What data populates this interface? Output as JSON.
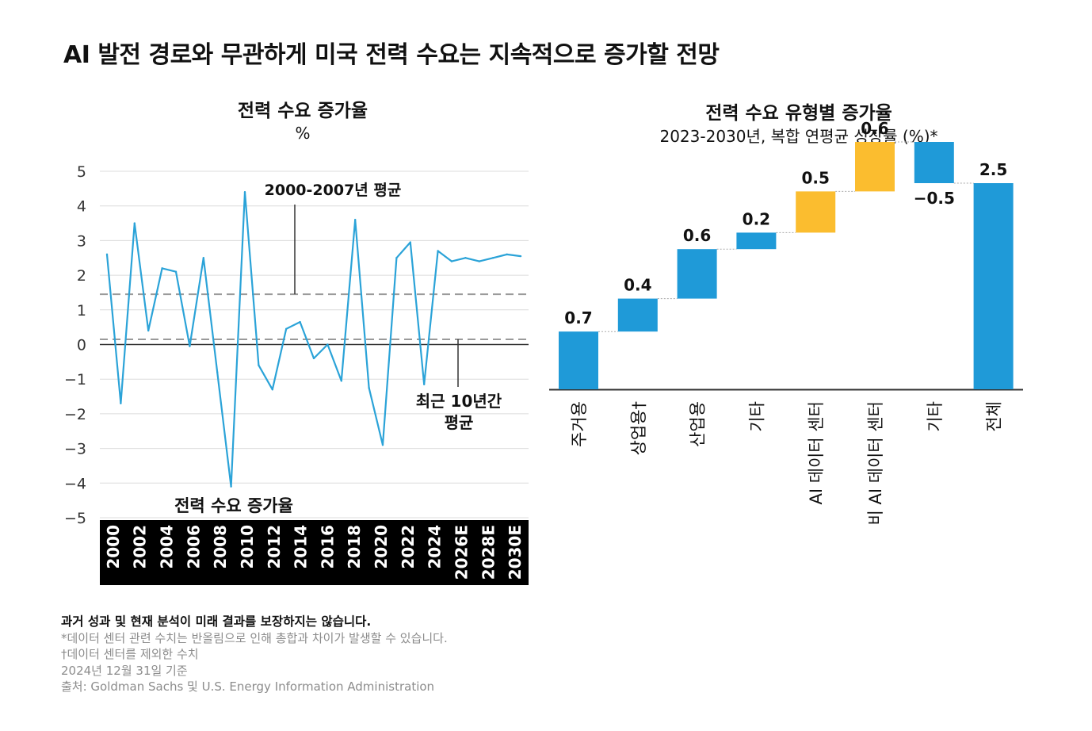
{
  "title": "AI 발전 경로와 무관하게 미국 전력 수요는 지속적으로 증가할 전망",
  "left_chart": {
    "title": "전력 수요 증가율",
    "unit": "%",
    "annotations": {
      "avg_2000_2007": "2000-2007년 평균",
      "avg_10yr_line1": "최근 10년간",
      "avg_10yr_line2": "평균",
      "series_label": "전력 수요 증가율"
    }
  },
  "right_chart": {
    "title": "전력 수요 유형별 증가율",
    "subtitle": "2023-2030년, 복합 연평균 성장률 (%)*"
  },
  "chart_data": [
    {
      "type": "line",
      "title": "전력 수요 증가율",
      "ylabel": "%",
      "ylim": [
        -5,
        5
      ],
      "yticks": [
        "5",
        "4",
        "3",
        "2",
        "1",
        "0",
        "−1",
        "−2",
        "−3",
        "−4",
        "−5"
      ],
      "x_tick_labels": [
        "2000",
        "2002",
        "2004",
        "2006",
        "2008",
        "2010",
        "2012",
        "2014",
        "2016",
        "2018",
        "2020",
        "2022",
        "2024",
        "2026E",
        "2028E",
        "2030E"
      ],
      "x": [
        2000,
        2001,
        2002,
        2003,
        2004,
        2005,
        2006,
        2007,
        2008,
        2009,
        2010,
        2011,
        2012,
        2013,
        2014,
        2015,
        2016,
        2017,
        2018,
        2019,
        2020,
        2021,
        2022,
        2023,
        2024,
        2025,
        2026,
        2027,
        2028,
        2029,
        2030
      ],
      "series": [
        {
          "name": "전력 수요 증가율",
          "values": [
            2.6,
            -1.7,
            3.5,
            0.4,
            2.2,
            2.1,
            -0.05,
            2.5,
            -0.8,
            -4.1,
            4.4,
            -0.6,
            -1.3,
            0.45,
            0.65,
            -0.4,
            0.0,
            -1.05,
            3.6,
            -1.25,
            -2.9,
            2.5,
            2.95,
            -1.15,
            2.7,
            2.4,
            2.5,
            2.4,
            2.5,
            2.6,
            2.55
          ],
          "color": "#2ba3d8"
        }
      ],
      "reference_lines": [
        {
          "label": "2000-2007년 평균",
          "value": 1.45
        },
        {
          "label": "최근 10년간 평균",
          "value": 0.15
        }
      ]
    },
    {
      "type": "bar",
      "subtype": "waterfall",
      "title": "전력 수요 유형별 증가율",
      "subtitle": "2023-2030년, 복합 연평균 성장률 (%)*",
      "categories": [
        "주거용",
        "상업용†",
        "산업용",
        "기타",
        "AI 데이터 센터",
        "비 AI 데이터 센터",
        "기타",
        "전체"
      ],
      "values": [
        0.7,
        0.4,
        0.6,
        0.2,
        0.5,
        0.6,
        -0.5,
        2.5
      ],
      "value_labels": [
        "0.7",
        "0.4",
        "0.6",
        "0.2",
        "0.5",
        "0.6",
        "−0.5",
        "2.5"
      ],
      "colors": [
        "#1f9ad8",
        "#1f9ad8",
        "#1f9ad8",
        "#1f9ad8",
        "#fbbd2f",
        "#fbbd2f",
        "#1f9ad8",
        "#1f9ad8"
      ],
      "total_index": 7
    }
  ],
  "notes": {
    "disclaimer": "과거 성과 및 현재 분석이 미래 결과를 보장하지는 않습니다.",
    "note1": "*데이터 센터 관련 수치는 반올림으로 인해 총합과 차이가 발생할 수 있습니다.",
    "note2": "†데이터 센터를 제외한 수치",
    "note3": "2024년 12월 31일 기준",
    "source": "출처: Goldman Sachs 및 U.S. Energy Information Administration"
  }
}
